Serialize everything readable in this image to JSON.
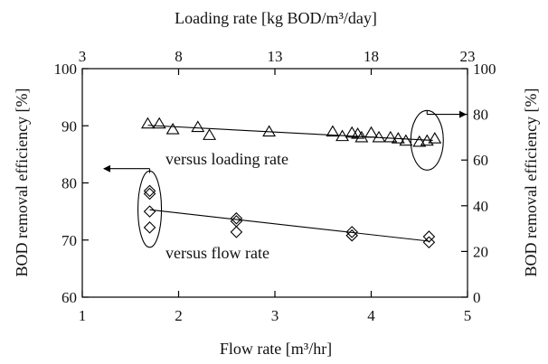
{
  "chart_data": {
    "type": "scatter",
    "grid": false,
    "x_bottom": {
      "label": "Flow rate [m³/hr]",
      "range": [
        1,
        5
      ],
      "ticks": [
        1,
        2,
        3,
        4,
        5
      ]
    },
    "x_top": {
      "label": "Loading rate [kg BOD/m³/day]",
      "range": [
        3,
        23
      ],
      "ticks": [
        3,
        8,
        13,
        18,
        23
      ]
    },
    "y_left": {
      "label": "BOD removal efficiency [%]",
      "range": [
        60,
        100
      ],
      "ticks": [
        60,
        70,
        80,
        90,
        100
      ]
    },
    "y_right": {
      "label": "BOD removal efficiency [%]",
      "range": [
        0,
        100
      ],
      "ticks": [
        0,
        20,
        40,
        60,
        80,
        100
      ]
    },
    "series": [
      {
        "marker": "diamond",
        "axes": "bottom-left",
        "points": [
          [
            1.7,
            78.6
          ],
          [
            1.7,
            78.1
          ],
          [
            1.7,
            75.0
          ],
          [
            1.7,
            72.2
          ],
          [
            2.6,
            73.8
          ],
          [
            2.6,
            73.3
          ],
          [
            2.6,
            71.4
          ],
          [
            3.8,
            71.4
          ],
          [
            3.8,
            70.8
          ],
          [
            4.6,
            70.6
          ],
          [
            4.6,
            69.6
          ]
        ],
        "trendline": [
          [
            1.7,
            75.3
          ],
          [
            4.6,
            69.8
          ]
        ]
      },
      {
        "marker": "triangle",
        "axes": "top-right",
        "points": [
          [
            6.4,
            76.0
          ],
          [
            7.0,
            76.0
          ],
          [
            7.7,
            73.5
          ],
          [
            9.0,
            74.5
          ],
          [
            9.6,
            71.0
          ],
          [
            12.7,
            72.5
          ],
          [
            16.0,
            72.5
          ],
          [
            16.5,
            70.5
          ],
          [
            17.0,
            72.0
          ],
          [
            17.3,
            71.5
          ],
          [
            17.5,
            70.0
          ],
          [
            18.0,
            72.0
          ],
          [
            18.4,
            70.0
          ],
          [
            19.0,
            70.0
          ],
          [
            19.4,
            69.5
          ],
          [
            19.8,
            68.5
          ],
          [
            20.5,
            68.0
          ],
          [
            20.9,
            68.5
          ],
          [
            21.3,
            69.5
          ]
        ],
        "trendline": [
          [
            6.4,
            75.2
          ],
          [
            21.2,
            68.6
          ]
        ]
      }
    ],
    "annotations": {
      "loading": "versus loading rate",
      "flow": "versus flow rate"
    }
  }
}
